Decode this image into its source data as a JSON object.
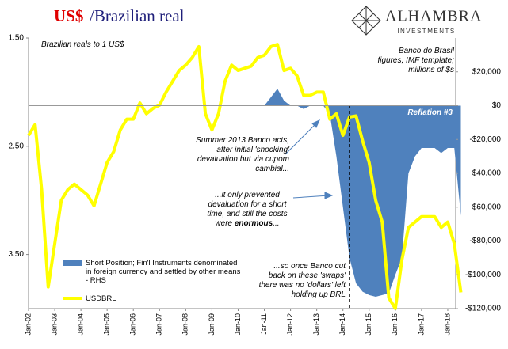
{
  "chart_data": {
    "type": "line",
    "title_parts": [
      "US$",
      "/Brazilian real"
    ],
    "logo": {
      "name": "ALHAMBRA",
      "sub": "INVESTMENTS"
    },
    "annotations": {
      "units_left": "Brazilian reals to 1 US$",
      "units_right": "Banco do Brasil figures, IMF template; millions of $s",
      "reflation": "Reflation #3",
      "summer": "Summer 2013 Banco acts, after initial 'shocking' devaluation but via cupom cambial...",
      "prevented": [
        "...it only prevented devaluation for a short time, and still the costs were ",
        "enormous",
        "..."
      ],
      "cutback": "...so once Banco cut back on these 'swaps' there was no 'dollars' left holding up BRL"
    },
    "x": [
      "Jan-02",
      "Apr-02",
      "Jul-02",
      "Oct-02",
      "Jan-03",
      "Apr-03",
      "Jul-03",
      "Oct-03",
      "Jan-04",
      "Apr-04",
      "Jul-04",
      "Oct-04",
      "Jan-05",
      "Apr-05",
      "Jul-05",
      "Oct-05",
      "Jan-06",
      "Apr-06",
      "Jul-06",
      "Oct-06",
      "Jan-07",
      "Apr-07",
      "Jul-07",
      "Oct-07",
      "Jan-08",
      "Apr-08",
      "Jul-08",
      "Oct-08",
      "Jan-09",
      "Apr-09",
      "Jul-09",
      "Oct-09",
      "Jan-10",
      "Apr-10",
      "Jul-10",
      "Oct-10",
      "Jan-11",
      "Apr-11",
      "Jul-11",
      "Oct-11",
      "Jan-12",
      "Apr-12",
      "Jul-12",
      "Oct-12",
      "Jan-13",
      "Apr-13",
      "Jul-13",
      "Oct-13",
      "Jan-14",
      "Apr-14",
      "Jul-14",
      "Oct-14",
      "Jan-15",
      "Apr-15",
      "Jul-15",
      "Oct-15",
      "Jan-16",
      "Apr-16",
      "Jul-16",
      "Oct-16",
      "Jan-17",
      "Apr-17",
      "Jul-17",
      "Oct-17",
      "Jan-18",
      "Apr-18",
      "Jul-18"
    ],
    "series": [
      {
        "name": "Short Position; Fin'l Instruments denominated in foreign currency and settled by other means - RHS",
        "color": "#4f81bd",
        "axis": "y2",
        "kind": "area",
        "values": [
          null,
          null,
          null,
          null,
          null,
          null,
          null,
          null,
          null,
          null,
          null,
          null,
          null,
          null,
          null,
          null,
          null,
          null,
          null,
          null,
          null,
          null,
          null,
          null,
          null,
          null,
          null,
          null,
          null,
          null,
          null,
          null,
          null,
          null,
          null,
          null,
          0,
          5000,
          10000,
          3000,
          0,
          0,
          -2000,
          0,
          0,
          0,
          -5000,
          -30000,
          -60000,
          -90000,
          -105000,
          -110000,
          -112000,
          -113000,
          -112000,
          -111000,
          -100000,
          -90000,
          -40000,
          -30000,
          -25000,
          -25000,
          -25000,
          -28000,
          -25000,
          -25000,
          -65000
        ]
      },
      {
        "name": "USDBRL",
        "color": "#ffff00",
        "kind": "line",
        "values": [
          2.4,
          2.3,
          2.9,
          3.8,
          3.4,
          3.0,
          2.9,
          2.85,
          2.9,
          2.95,
          3.05,
          2.85,
          2.65,
          2.55,
          2.35,
          2.25,
          2.25,
          2.1,
          2.2,
          2.15,
          2.12,
          2.0,
          1.9,
          1.8,
          1.75,
          1.68,
          1.58,
          2.2,
          2.35,
          2.2,
          1.9,
          1.75,
          1.8,
          1.78,
          1.76,
          1.68,
          1.66,
          1.58,
          1.56,
          1.8,
          1.78,
          1.85,
          2.03,
          2.03,
          2.0,
          2.0,
          2.25,
          2.2,
          2.4,
          2.23,
          2.22,
          2.45,
          2.65,
          3.0,
          3.2,
          3.9,
          4.0,
          3.55,
          3.25,
          3.2,
          3.15,
          3.15,
          3.15,
          3.25,
          3.2,
          3.4,
          3.85
        ]
      }
    ],
    "xticks": [
      "Jan-02",
      "Jan-03",
      "Jan-04",
      "Jan-05",
      "Jan-06",
      "Jan-07",
      "Jan-08",
      "Jan-09",
      "Jan-10",
      "Jan-11",
      "Jan-12",
      "Jan-13",
      "Jan-14",
      "Jan-15",
      "Jan-16",
      "Jan-17",
      "Jan-18"
    ],
    "ylim": [
      1.5,
      4.0
    ],
    "y_inverted": true,
    "yticks": [
      {
        "value": 1.5,
        "label": "1.50"
      },
      {
        "value": 2.5,
        "label": "2.50"
      },
      {
        "value": 3.5,
        "label": "3.50"
      }
    ],
    "y2lim": [
      -120000,
      40000
    ],
    "y2ticks": [
      {
        "value": 20000,
        "label": "$20,000"
      },
      {
        "value": 0,
        "label": "$0"
      },
      {
        "value": -20000,
        "label": "-$20,000"
      },
      {
        "value": -40000,
        "label": "-$40,000"
      },
      {
        "value": -60000,
        "label": "-$60,000"
      },
      {
        "value": -80000,
        "label": "-$80,000"
      },
      {
        "value": -100000,
        "label": "-$100,000"
      },
      {
        "value": -120000,
        "label": "-$120,000"
      }
    ]
  }
}
